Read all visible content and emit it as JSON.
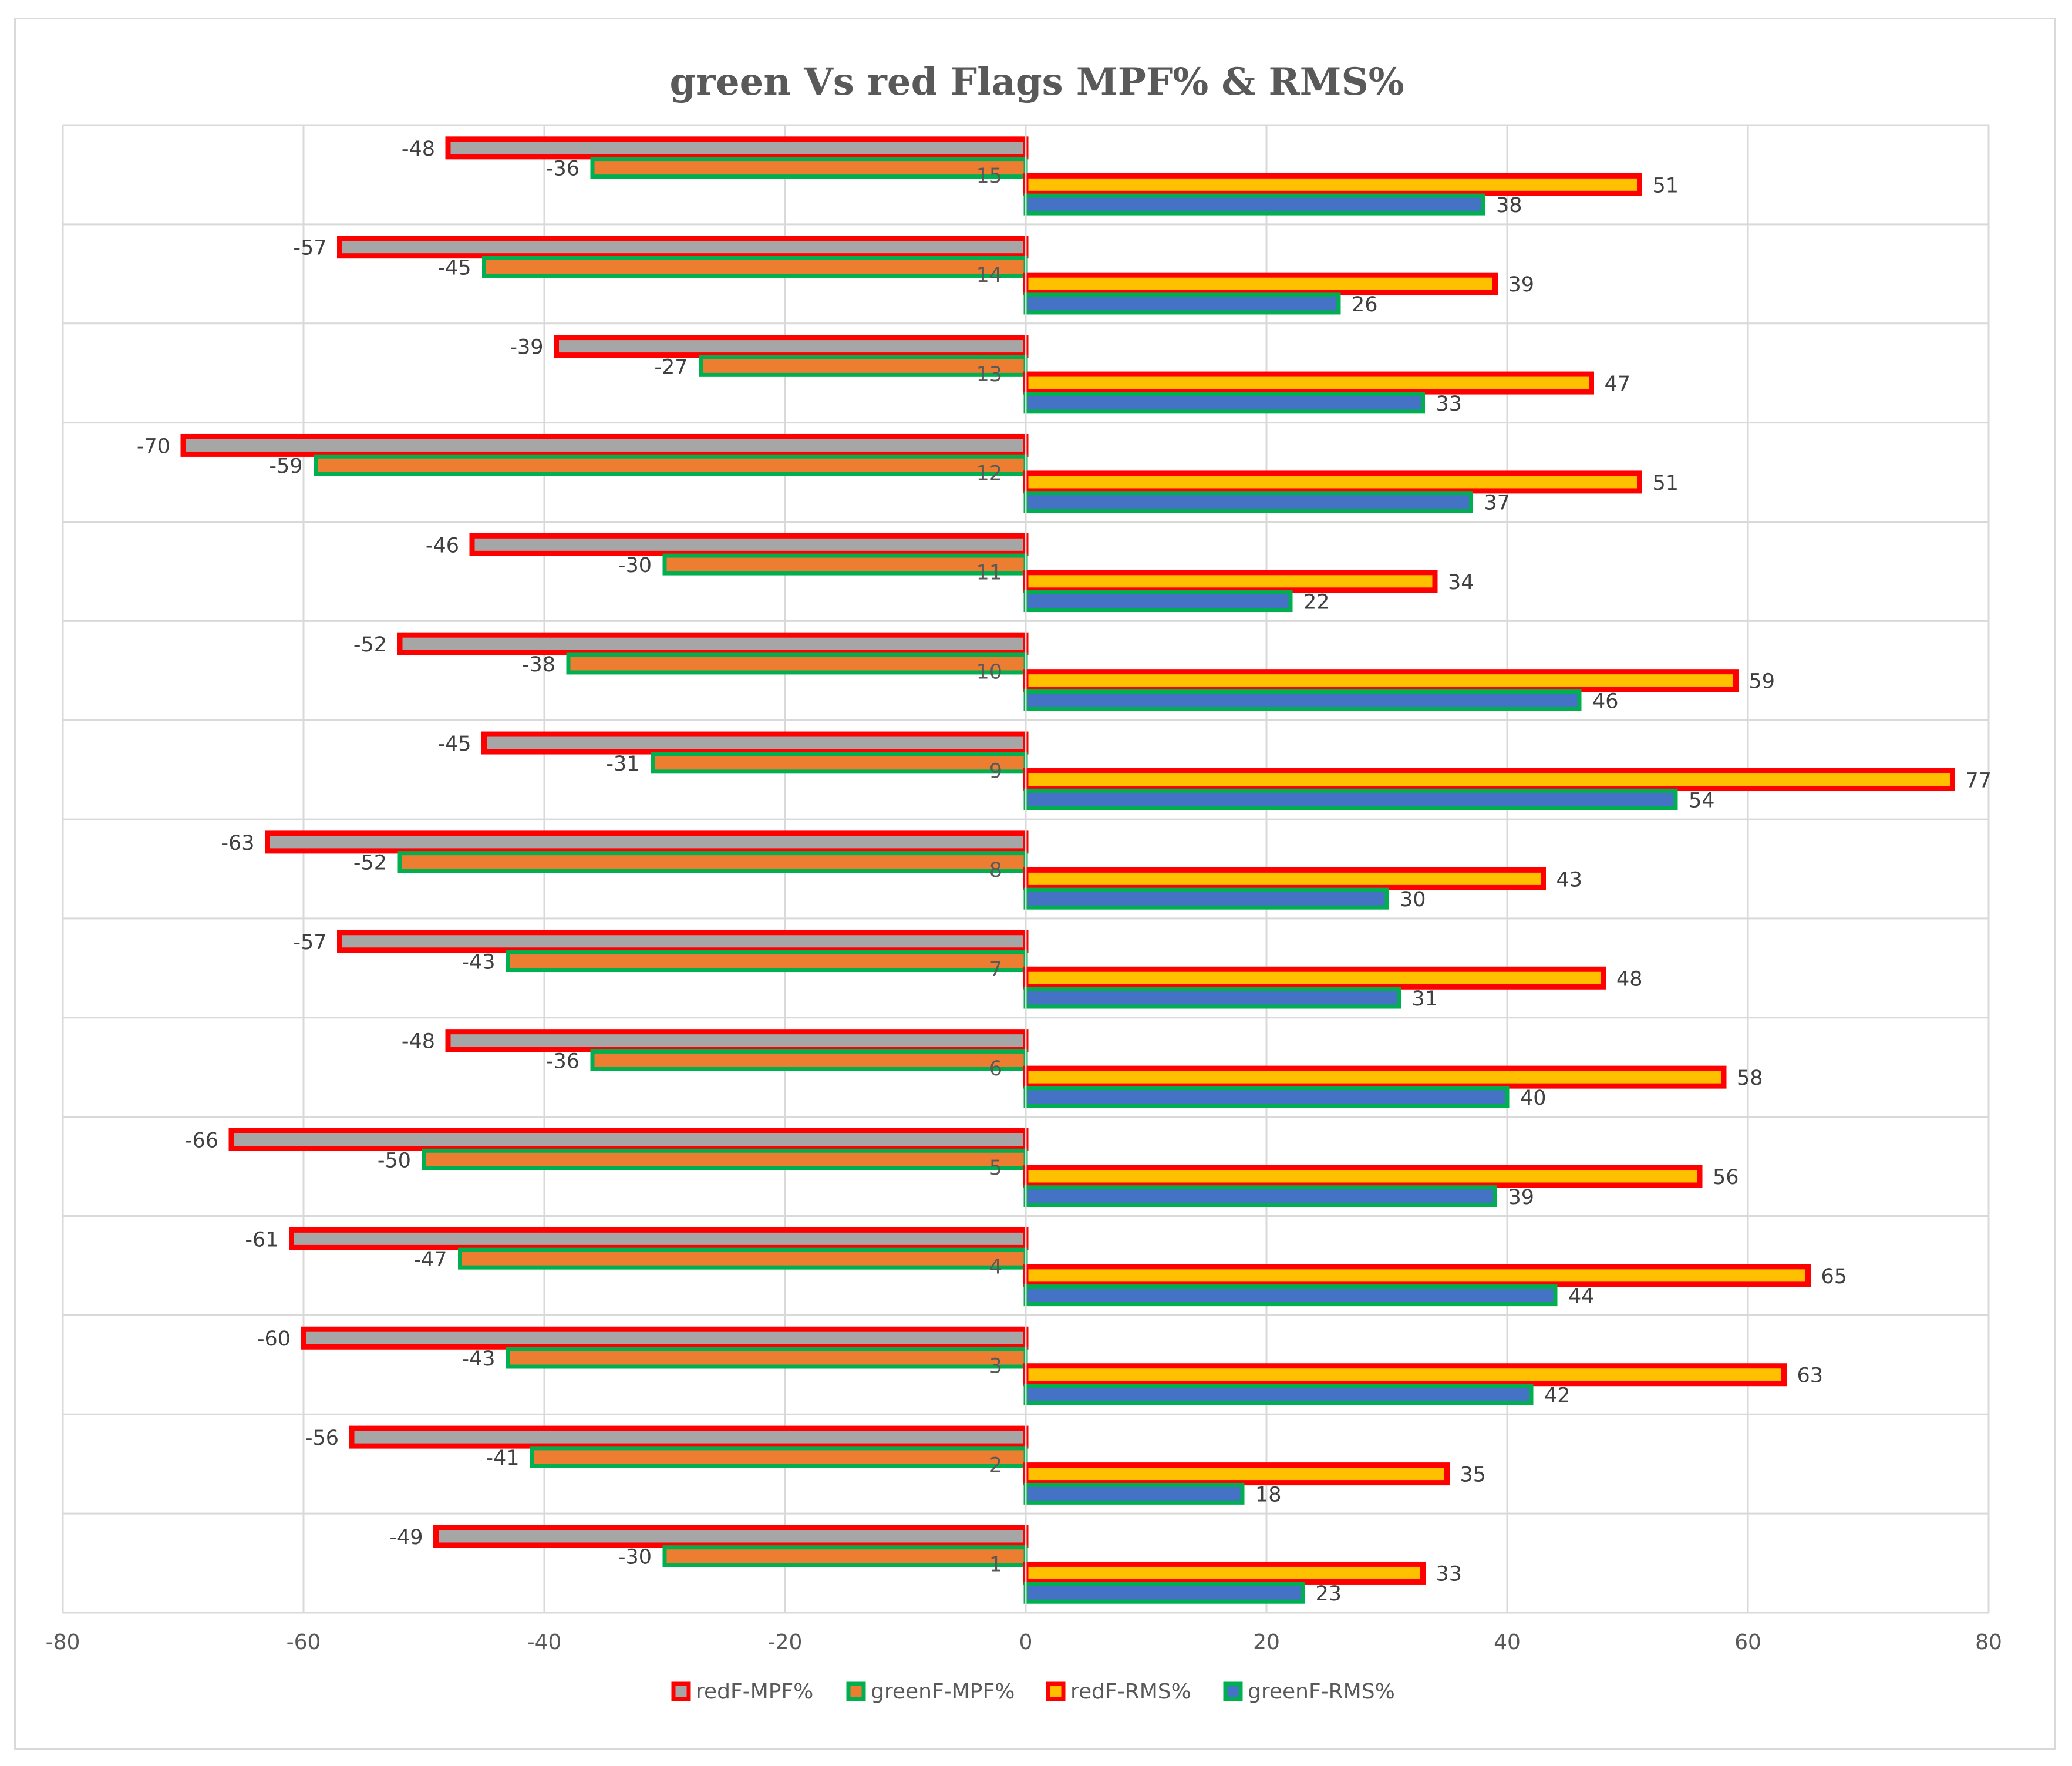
{
  "chart_data": {
    "type": "bar",
    "orientation": "horizontal",
    "title": "green Vs red Flags MPF% & RMS%",
    "categories": [
      "1",
      "2",
      "3",
      "4",
      "5",
      "6",
      "7",
      "8",
      "9",
      "10",
      "11",
      "12",
      "13",
      "14",
      "15"
    ],
    "xlim": [
      -80,
      80
    ],
    "xticks": [
      -80,
      -60,
      -40,
      -20,
      0,
      20,
      40,
      60,
      80
    ],
    "grid": true,
    "legend_position": "bottom",
    "series": [
      {
        "name": "redF-MPF%",
        "fill": "#a6a6a6",
        "stroke": "#ff0000",
        "values": [
          -49,
          -56,
          -60,
          -61,
          -66,
          -48,
          -57,
          -63,
          -45,
          -52,
          -46,
          -70,
          -39,
          -57,
          -48
        ]
      },
      {
        "name": "greenF-MPF%",
        "fill": "#ed7d31",
        "stroke": "#00b050",
        "values": [
          -30,
          -41,
          -43,
          -47,
          -50,
          -36,
          -43,
          -52,
          -31,
          -38,
          -30,
          -59,
          -27,
          -45,
          -36
        ]
      },
      {
        "name": "redF-RMS%",
        "fill": "#ffc000",
        "stroke": "#ff0000",
        "values": [
          33,
          35,
          63,
          65,
          56,
          58,
          48,
          43,
          77,
          59,
          34,
          51,
          47,
          39,
          51
        ]
      },
      {
        "name": "greenF-RMS%",
        "fill": "#4472c4",
        "stroke": "#00b050",
        "values": [
          23,
          18,
          42,
          44,
          39,
          40,
          31,
          30,
          54,
          46,
          22,
          37,
          33,
          26,
          38
        ]
      }
    ]
  },
  "colors": {
    "grid": "#d9d9d9",
    "text": "#595959",
    "label": "#404040"
  }
}
